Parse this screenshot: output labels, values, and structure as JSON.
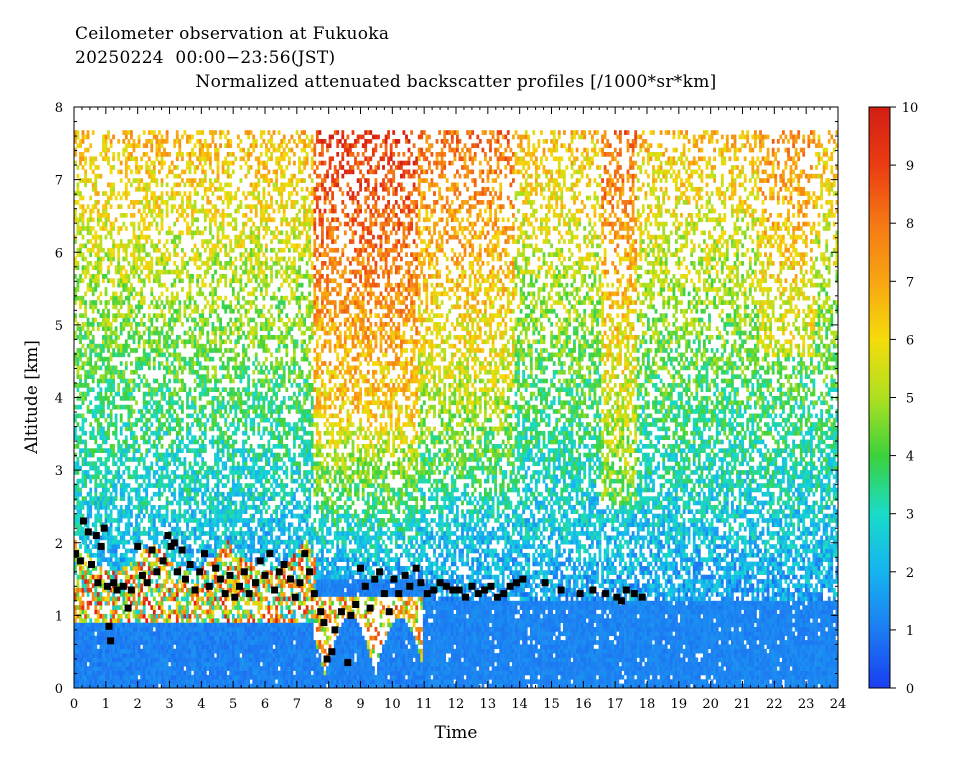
{
  "chart_data": {
    "type": "heatmap",
    "title_lines": [
      "Ceilometer observation at Fukuoka",
      "20250224  00:00−23:56(JST)",
      "Normalized attenuated backscatter profiles [/1000*sr*km]"
    ],
    "xlabel": "Time",
    "ylabel": "Altitude [km]",
    "xlim": [
      0,
      24
    ],
    "ylim": [
      0,
      8
    ],
    "x_ticks": [
      "0",
      "1",
      "2",
      "3",
      "4",
      "5",
      "6",
      "7",
      "8",
      "9",
      "10",
      "11",
      "12",
      "13",
      "14",
      "15",
      "16",
      "17",
      "18",
      "19",
      "20",
      "21",
      "22",
      "23",
      "24"
    ],
    "y_ticks": [
      "0",
      "1",
      "2",
      "3",
      "4",
      "5",
      "6",
      "7",
      "8"
    ],
    "colorbar": {
      "range": [
        0,
        10
      ],
      "ticks": [
        "0",
        "1",
        "2",
        "3",
        "4",
        "5",
        "6",
        "7",
        "8",
        "9",
        "10"
      ],
      "colors": [
        "#1a3ef2",
        "#1c7cf2",
        "#16b4f0",
        "#18dcc8",
        "#3cd23c",
        "#aee020",
        "#f5dc0a",
        "#f8a512",
        "#f57814",
        "#eb3c12",
        "#d21e14"
      ]
    },
    "data_ceiling_km": 7.65,
    "cloud_base_points": [
      {
        "x": 0.05,
        "y": 1.85
      },
      {
        "x": 0.2,
        "y": 1.75
      },
      {
        "x": 0.3,
        "y": 2.3
      },
      {
        "x": 0.45,
        "y": 2.15
      },
      {
        "x": 0.55,
        "y": 1.7
      },
      {
        "x": 0.7,
        "y": 2.1
      },
      {
        "x": 0.75,
        "y": 1.45
      },
      {
        "x": 0.85,
        "y": 1.95
      },
      {
        "x": 0.95,
        "y": 2.2
      },
      {
        "x": 1.05,
        "y": 1.4
      },
      {
        "x": 1.1,
        "y": 0.85
      },
      {
        "x": 1.15,
        "y": 0.65
      },
      {
        "x": 1.25,
        "y": 1.45
      },
      {
        "x": 1.35,
        "y": 1.35
      },
      {
        "x": 1.55,
        "y": 1.4
      },
      {
        "x": 1.7,
        "y": 1.1
      },
      {
        "x": 1.8,
        "y": 1.35
      },
      {
        "x": 2.0,
        "y": 1.95
      },
      {
        "x": 2.15,
        "y": 1.55
      },
      {
        "x": 2.3,
        "y": 1.45
      },
      {
        "x": 2.45,
        "y": 1.9
      },
      {
        "x": 2.6,
        "y": 1.6
      },
      {
        "x": 2.8,
        "y": 1.75
      },
      {
        "x": 2.95,
        "y": 2.1
      },
      {
        "x": 3.05,
        "y": 1.95
      },
      {
        "x": 3.15,
        "y": 2.0
      },
      {
        "x": 3.25,
        "y": 1.6
      },
      {
        "x": 3.4,
        "y": 1.9
      },
      {
        "x": 3.5,
        "y": 1.5
      },
      {
        "x": 3.65,
        "y": 1.7
      },
      {
        "x": 3.8,
        "y": 1.35
      },
      {
        "x": 3.95,
        "y": 1.6
      },
      {
        "x": 4.1,
        "y": 1.85
      },
      {
        "x": 4.25,
        "y": 1.4
      },
      {
        "x": 4.45,
        "y": 1.65
      },
      {
        "x": 4.6,
        "y": 1.5
      },
      {
        "x": 4.75,
        "y": 1.3
      },
      {
        "x": 4.9,
        "y": 1.55
      },
      {
        "x": 5.05,
        "y": 1.25
      },
      {
        "x": 5.2,
        "y": 1.4
      },
      {
        "x": 5.35,
        "y": 1.6
      },
      {
        "x": 5.5,
        "y": 1.3
      },
      {
        "x": 5.7,
        "y": 1.45
      },
      {
        "x": 5.85,
        "y": 1.75
      },
      {
        "x": 6.0,
        "y": 1.55
      },
      {
        "x": 6.15,
        "y": 1.85
      },
      {
        "x": 6.3,
        "y": 1.35
      },
      {
        "x": 6.45,
        "y": 1.6
      },
      {
        "x": 6.6,
        "y": 1.7
      },
      {
        "x": 6.8,
        "y": 1.5
      },
      {
        "x": 6.95,
        "y": 1.25
      },
      {
        "x": 7.1,
        "y": 1.45
      },
      {
        "x": 7.25,
        "y": 1.85
      },
      {
        "x": 7.4,
        "y": 1.6
      },
      {
        "x": 7.55,
        "y": 1.3
      },
      {
        "x": 7.75,
        "y": 1.05
      },
      {
        "x": 7.85,
        "y": 0.9
      },
      {
        "x": 7.95,
        "y": 0.4
      },
      {
        "x": 8.1,
        "y": 0.5
      },
      {
        "x": 8.2,
        "y": 0.8
      },
      {
        "x": 8.4,
        "y": 1.05
      },
      {
        "x": 8.6,
        "y": 0.35
      },
      {
        "x": 8.7,
        "y": 1.0
      },
      {
        "x": 8.85,
        "y": 1.15
      },
      {
        "x": 9.0,
        "y": 1.65
      },
      {
        "x": 9.15,
        "y": 1.4
      },
      {
        "x": 9.3,
        "y": 1.1
      },
      {
        "x": 9.45,
        "y": 1.5
      },
      {
        "x": 9.6,
        "y": 1.6
      },
      {
        "x": 9.75,
        "y": 1.3
      },
      {
        "x": 9.9,
        "y": 1.05
      },
      {
        "x": 10.05,
        "y": 1.5
      },
      {
        "x": 10.2,
        "y": 1.3
      },
      {
        "x": 10.4,
        "y": 1.55
      },
      {
        "x": 10.55,
        "y": 1.4
      },
      {
        "x": 10.75,
        "y": 1.65
      },
      {
        "x": 10.9,
        "y": 1.45
      },
      {
        "x": 11.1,
        "y": 1.3
      },
      {
        "x": 11.3,
        "y": 1.35
      },
      {
        "x": 11.5,
        "y": 1.45
      },
      {
        "x": 11.7,
        "y": 1.4
      },
      {
        "x": 11.9,
        "y": 1.35
      },
      {
        "x": 12.1,
        "y": 1.35
      },
      {
        "x": 12.3,
        "y": 1.25
      },
      {
        "x": 12.5,
        "y": 1.4
      },
      {
        "x": 12.7,
        "y": 1.3
      },
      {
        "x": 12.9,
        "y": 1.35
      },
      {
        "x": 13.1,
        "y": 1.4
      },
      {
        "x": 13.3,
        "y": 1.25
      },
      {
        "x": 13.5,
        "y": 1.3
      },
      {
        "x": 13.7,
        "y": 1.4
      },
      {
        "x": 13.9,
        "y": 1.45
      },
      {
        "x": 14.1,
        "y": 1.5
      },
      {
        "x": 14.8,
        "y": 1.45
      },
      {
        "x": 15.3,
        "y": 1.35
      },
      {
        "x": 15.9,
        "y": 1.3
      },
      {
        "x": 16.3,
        "y": 1.35
      },
      {
        "x": 16.7,
        "y": 1.3
      },
      {
        "x": 17.05,
        "y": 1.25
      },
      {
        "x": 17.2,
        "y": 1.2
      },
      {
        "x": 17.35,
        "y": 1.35
      },
      {
        "x": 17.6,
        "y": 1.3
      },
      {
        "x": 17.85,
        "y": 1.25
      }
    ]
  }
}
